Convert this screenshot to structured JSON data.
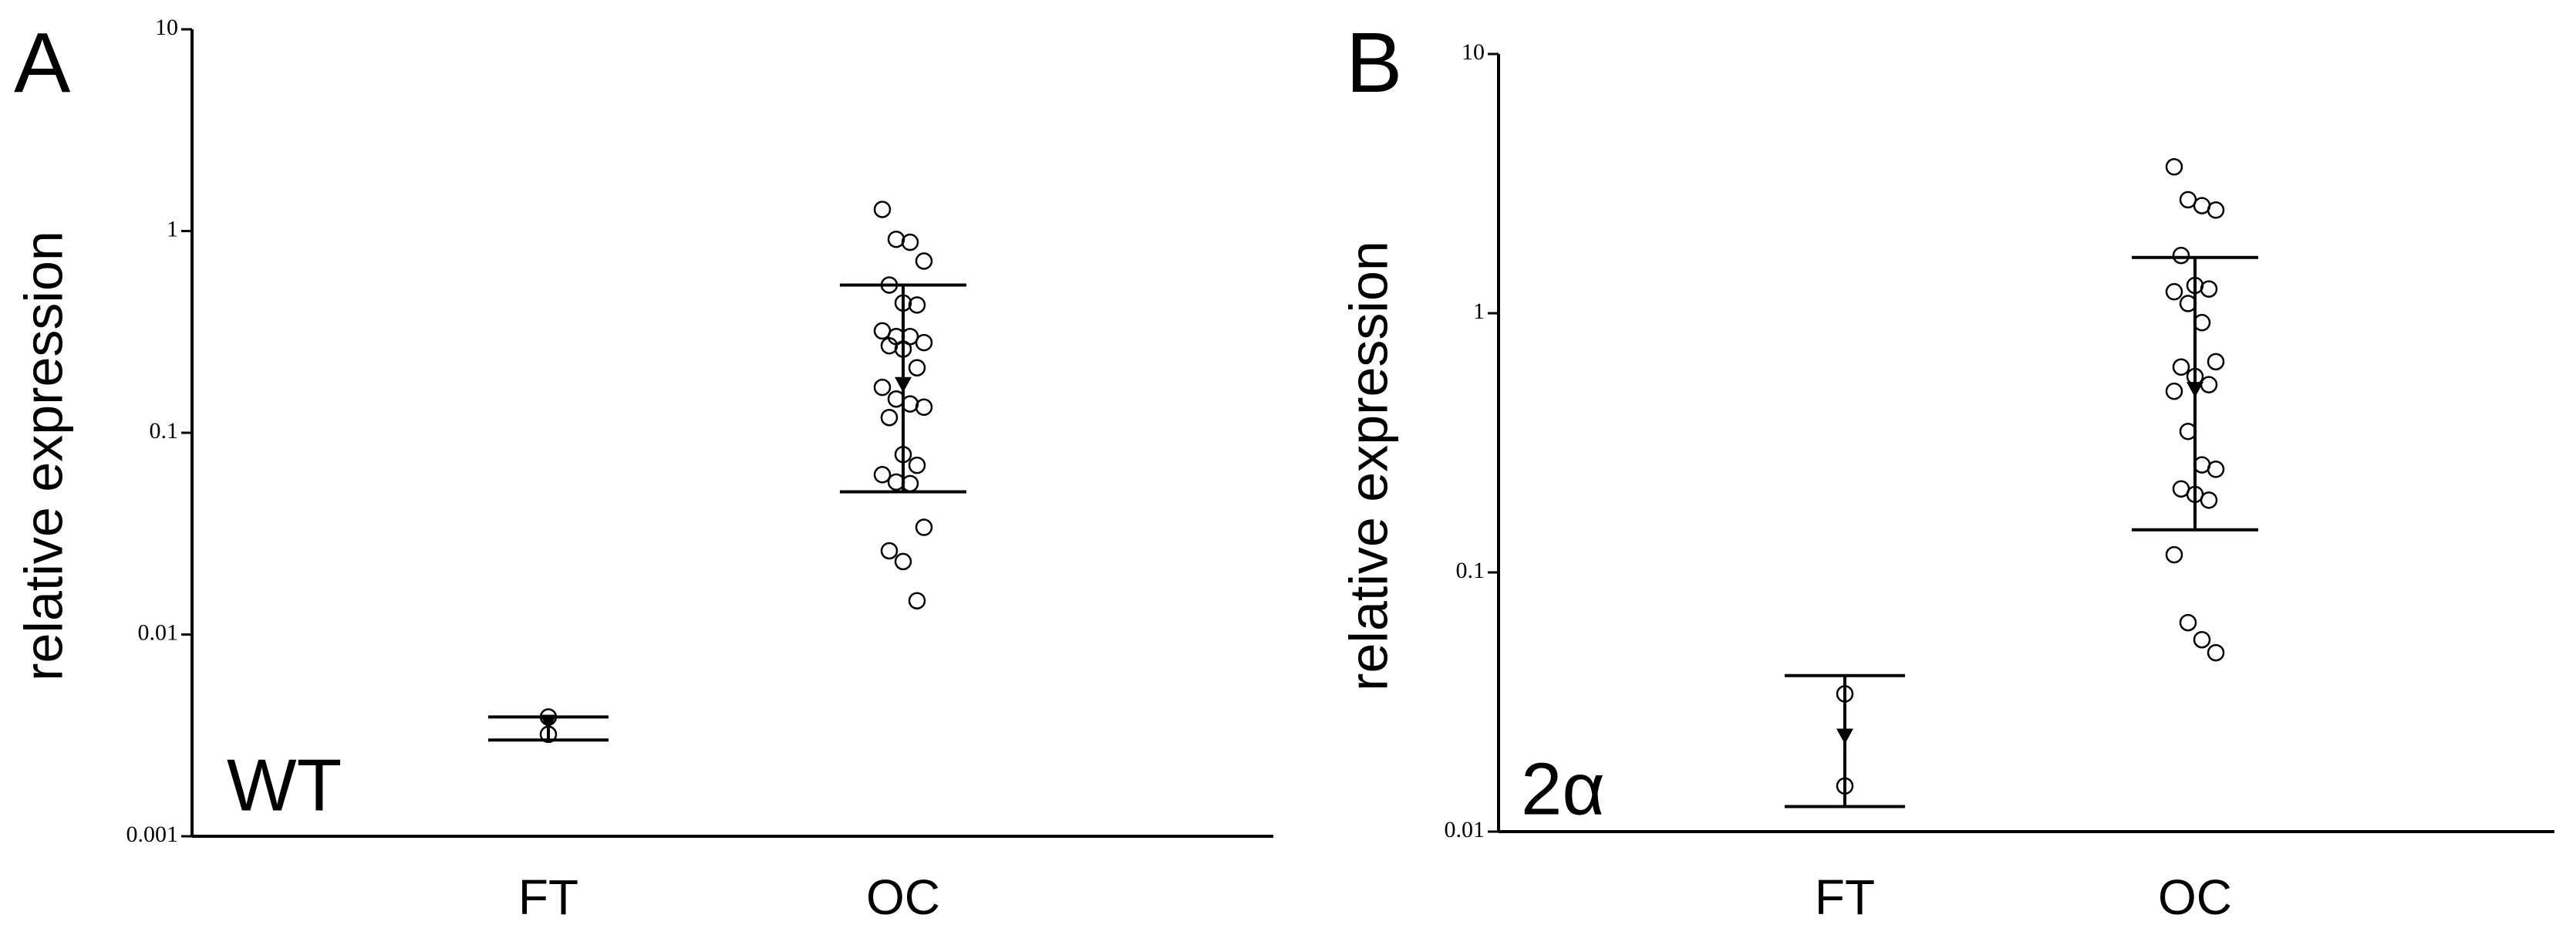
{
  "chart_data": [
    {
      "type": "scatter",
      "panel": "A",
      "label": "WT",
      "y_label": "relative expression",
      "categories": [
        "FT",
        "OC"
      ],
      "log_scale": true,
      "ylim": [
        0.001,
        10
      ],
      "yticks": [
        0.001,
        0.01,
        0.1,
        1,
        10
      ],
      "groups": [
        {
          "values": [
            0.0039,
            0.0032
          ],
          "mean": 0.0036,
          "error": [
            0.003,
            0.0039
          ]
        },
        {
          "values": [
            1.28,
            0.91,
            0.88,
            0.71,
            0.54,
            0.44,
            0.43,
            0.32,
            0.3,
            0.3,
            0.28,
            0.27,
            0.26,
            0.21,
            0.168,
            0.147,
            0.139,
            0.134,
            0.119,
            0.078,
            0.069,
            0.062,
            0.057,
            0.056,
            0.034,
            0.026,
            0.023,
            0.0147
          ],
          "mean": 0.17,
          "error": [
            0.051,
            0.54
          ]
        }
      ]
    },
    {
      "type": "scatter",
      "panel": "B",
      "label": "2α",
      "y_label": "relative expression",
      "categories": [
        "FT",
        "OC"
      ],
      "log_scale": true,
      "ylim": [
        0.01,
        10
      ],
      "yticks": [
        0.01,
        0.1,
        1,
        10
      ],
      "groups": [
        {
          "values": [
            0.034,
            0.015
          ],
          "mean": 0.023,
          "error": [
            0.0125,
            0.04
          ]
        },
        {
          "values": [
            3.67,
            2.74,
            2.6,
            2.5,
            1.67,
            1.28,
            1.24,
            1.21,
            1.09,
            0.92,
            0.65,
            0.62,
            0.57,
            0.53,
            0.5,
            0.35,
            0.26,
            0.25,
            0.21,
            0.2,
            0.19,
            0.117,
            0.064,
            0.055,
            0.049
          ],
          "mean": 0.5,
          "error": [
            0.146,
            1.64
          ]
        }
      ]
    }
  ]
}
